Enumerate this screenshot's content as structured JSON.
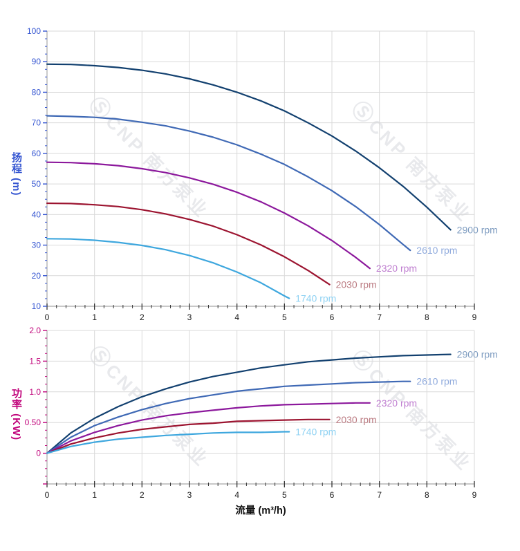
{
  "watermark": {
    "logo_glyph": "Ⓢ",
    "text": "CNP 南方泵业"
  },
  "chart_data": [
    {
      "type": "line",
      "id": "head-vs-flow",
      "title": "",
      "xlabel": "",
      "ylabel": "扬程 (m)",
      "xlim": [
        0,
        9
      ],
      "ylim": [
        10,
        100
      ],
      "grid": true,
      "legend_position": "line-end-labels",
      "axis_color": "#3354d1",
      "x_major_ticks": [
        0,
        1,
        2,
        3,
        4,
        5,
        6,
        7,
        8,
        9
      ],
      "x_minor_step": 0.2,
      "y_major_ticks": [
        100,
        90,
        80,
        70,
        60,
        50,
        40,
        30,
        20,
        10
      ],
      "y_tick_labels": [
        "100",
        "90",
        "80",
        "70",
        "60",
        "50",
        "40",
        "30",
        "20",
        "10"
      ],
      "y_minor_step": 2.5,
      "series": [
        {
          "name": "2900 rpm",
          "color": "#12406f",
          "label_color": "#7f9dc1",
          "points": [
            [
              0,
              89.2
            ],
            [
              0.5,
              89.1
            ],
            [
              1,
              88.7
            ],
            [
              1.5,
              88.1
            ],
            [
              2,
              87.2
            ],
            [
              2.5,
              86.0
            ],
            [
              3,
              84.4
            ],
            [
              3.5,
              82.4
            ],
            [
              4,
              80.0
            ],
            [
              4.5,
              77.2
            ],
            [
              5,
              73.9
            ],
            [
              5.5,
              70.0
            ],
            [
              6,
              65.7
            ],
            [
              6.5,
              60.8
            ],
            [
              7,
              55.3
            ],
            [
              7.5,
              49.2
            ],
            [
              8,
              42.4
            ],
            [
              8.5,
              35.0
            ]
          ]
        },
        {
          "name": "2610 rpm",
          "color": "#3f69b5",
          "label_color": "#90abdd",
          "points": [
            [
              0,
              72.3
            ],
            [
              0.5,
              72.1
            ],
            [
              1,
              71.8
            ],
            [
              1.5,
              71.2
            ],
            [
              2,
              70.2
            ],
            [
              2.5,
              69.0
            ],
            [
              3,
              67.3
            ],
            [
              3.5,
              65.3
            ],
            [
              4,
              62.8
            ],
            [
              4.5,
              59.8
            ],
            [
              5,
              56.4
            ],
            [
              5.5,
              52.3
            ],
            [
              6,
              47.8
            ],
            [
              6.5,
              42.6
            ],
            [
              7,
              36.7
            ],
            [
              7.5,
              30.2
            ],
            [
              7.65,
              28.3
            ]
          ]
        },
        {
          "name": "2320 rpm",
          "color": "#8c189c",
          "label_color": "#bf7ed0",
          "points": [
            [
              0,
              57.1
            ],
            [
              0.5,
              57.0
            ],
            [
              1,
              56.6
            ],
            [
              1.5,
              56.0
            ],
            [
              2,
              55.0
            ],
            [
              2.5,
              53.7
            ],
            [
              3,
              52.0
            ],
            [
              3.5,
              49.9
            ],
            [
              4,
              47.3
            ],
            [
              4.5,
              44.2
            ],
            [
              5,
              40.5
            ],
            [
              5.5,
              36.3
            ],
            [
              6,
              31.5
            ],
            [
              6.5,
              26.0
            ],
            [
              6.8,
              22.4
            ]
          ]
        },
        {
          "name": "2030 rpm",
          "color": "#9c1430",
          "label_color": "#bb7b82",
          "points": [
            [
              0,
              43.7
            ],
            [
              0.5,
              43.6
            ],
            [
              1,
              43.2
            ],
            [
              1.5,
              42.6
            ],
            [
              2,
              41.6
            ],
            [
              2.5,
              40.2
            ],
            [
              3,
              38.4
            ],
            [
              3.5,
              36.2
            ],
            [
              4,
              33.4
            ],
            [
              4.5,
              30.1
            ],
            [
              5,
              26.2
            ],
            [
              5.5,
              21.7
            ],
            [
              5.95,
              17.1
            ]
          ]
        },
        {
          "name": "1740 rpm",
          "color": "#3ea7de",
          "label_color": "#8fd2f3",
          "points": [
            [
              0,
              32.1
            ],
            [
              0.5,
              32.0
            ],
            [
              1,
              31.6
            ],
            [
              1.5,
              30.9
            ],
            [
              2,
              29.9
            ],
            [
              2.5,
              28.5
            ],
            [
              3,
              26.6
            ],
            [
              3.5,
              24.2
            ],
            [
              4,
              21.2
            ],
            [
              4.5,
              17.7
            ],
            [
              5,
              13.4
            ],
            [
              5.1,
              12.6
            ]
          ]
        }
      ]
    },
    {
      "type": "line",
      "id": "power-vs-flow",
      "title": "",
      "xlabel": "流量 (m³/h)",
      "ylabel": "功率 (KW)",
      "xlim": [
        0,
        9
      ],
      "ylim": [
        -0.5,
        2.0
      ],
      "grid": true,
      "legend_position": "line-end-labels",
      "axis_color": "#c1067c",
      "x_major_ticks": [
        0,
        1,
        2,
        3,
        4,
        5,
        6,
        7,
        8,
        9
      ],
      "x_minor_step": 0.2,
      "y_major_ticks": [
        2.0,
        1.5,
        1.0,
        0.5,
        0
      ],
      "y_tick_labels": [
        "2.0",
        "1.5",
        "1.0",
        "0.50",
        "0"
      ],
      "y_minor_step": 0.125,
      "series": [
        {
          "name": "2900 rpm",
          "color": "#12406f",
          "label_color": "#7f9dc1",
          "points": [
            [
              0,
              0
            ],
            [
              0.5,
              0.33
            ],
            [
              1,
              0.57
            ],
            [
              1.5,
              0.76
            ],
            [
              2,
              0.92
            ],
            [
              2.5,
              1.05
            ],
            [
              3,
              1.16
            ],
            [
              3.5,
              1.25
            ],
            [
              4,
              1.32
            ],
            [
              4.5,
              1.39
            ],
            [
              5,
              1.44
            ],
            [
              5.5,
              1.49
            ],
            [
              6,
              1.52
            ],
            [
              6.5,
              1.55
            ],
            [
              7,
              1.57
            ],
            [
              7.5,
              1.59
            ],
            [
              8,
              1.6
            ],
            [
              8.5,
              1.61
            ]
          ]
        },
        {
          "name": "2610 rpm",
          "color": "#3f69b5",
          "label_color": "#90abdd",
          "points": [
            [
              0,
              0
            ],
            [
              0.5,
              0.26
            ],
            [
              1,
              0.45
            ],
            [
              1.5,
              0.59
            ],
            [
              2,
              0.71
            ],
            [
              2.5,
              0.81
            ],
            [
              3,
              0.89
            ],
            [
              3.5,
              0.95
            ],
            [
              4,
              1.01
            ],
            [
              4.5,
              1.05
            ],
            [
              5,
              1.09
            ],
            [
              5.5,
              1.11
            ],
            [
              6,
              1.13
            ],
            [
              6.5,
              1.15
            ],
            [
              7,
              1.16
            ],
            [
              7.5,
              1.17
            ],
            [
              7.65,
              1.17
            ]
          ]
        },
        {
          "name": "2320 rpm",
          "color": "#8c189c",
          "label_color": "#bf7ed0",
          "points": [
            [
              0,
              0
            ],
            [
              0.5,
              0.2
            ],
            [
              1,
              0.34
            ],
            [
              1.5,
              0.45
            ],
            [
              2,
              0.54
            ],
            [
              2.5,
              0.61
            ],
            [
              3,
              0.66
            ],
            [
              3.5,
              0.7
            ],
            [
              4,
              0.74
            ],
            [
              4.5,
              0.77
            ],
            [
              5,
              0.79
            ],
            [
              5.5,
              0.8
            ],
            [
              6,
              0.81
            ],
            [
              6.5,
              0.82
            ],
            [
              6.8,
              0.82
            ]
          ]
        },
        {
          "name": "2030 rpm",
          "color": "#9c1430",
          "label_color": "#bb7b82",
          "points": [
            [
              0,
              0
            ],
            [
              0.5,
              0.15
            ],
            [
              1,
              0.25
            ],
            [
              1.5,
              0.33
            ],
            [
              2,
              0.39
            ],
            [
              2.5,
              0.43
            ],
            [
              3,
              0.47
            ],
            [
              3.5,
              0.49
            ],
            [
              4,
              0.52
            ],
            [
              4.5,
              0.53
            ],
            [
              5,
              0.54
            ],
            [
              5.5,
              0.55
            ],
            [
              5.95,
              0.55
            ]
          ]
        },
        {
          "name": "1740 rpm",
          "color": "#3ea7de",
          "label_color": "#8fd2f3",
          "points": [
            [
              0,
              0
            ],
            [
              0.5,
              0.11
            ],
            [
              1,
              0.18
            ],
            [
              1.5,
              0.23
            ],
            [
              2,
              0.26
            ],
            [
              2.5,
              0.29
            ],
            [
              3,
              0.31
            ],
            [
              3.5,
              0.33
            ],
            [
              4,
              0.34
            ],
            [
              4.5,
              0.34
            ],
            [
              5,
              0.35
            ],
            [
              5.1,
              0.35
            ]
          ]
        }
      ]
    }
  ]
}
